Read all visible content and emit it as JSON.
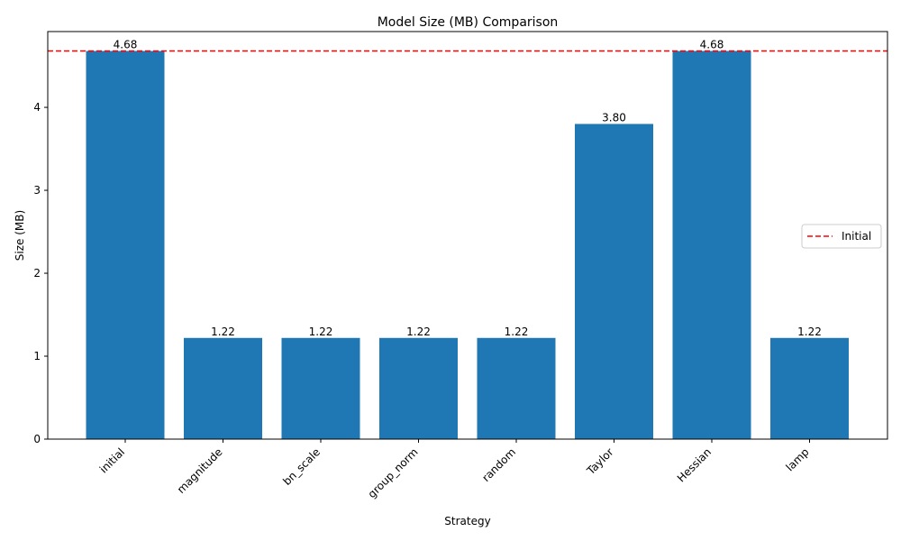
{
  "chart_data": {
    "type": "bar",
    "title": "Model Size (MB) Comparison",
    "xlabel": "Strategy",
    "ylabel": "Size (MB)",
    "categories": [
      "initial",
      "magnitude",
      "bn_scale",
      "group_norm",
      "random",
      "Taylor",
      "Hessian",
      "lamp"
    ],
    "values": [
      4.68,
      1.22,
      1.22,
      1.22,
      1.22,
      3.8,
      4.68,
      1.22
    ],
    "value_labels": [
      "4.68",
      "1.22",
      "1.22",
      "1.22",
      "1.22",
      "3.80",
      "4.68",
      "1.22"
    ],
    "ylim": [
      0,
      4.914
    ],
    "yticks": [
      0,
      1,
      2,
      3,
      4
    ],
    "reference_line": {
      "name": "Initial",
      "value": 4.68,
      "color": "#ff0000",
      "style": "dashed"
    },
    "bar_color": "#1f77b4",
    "legend_position": "center-right",
    "grid": false
  }
}
